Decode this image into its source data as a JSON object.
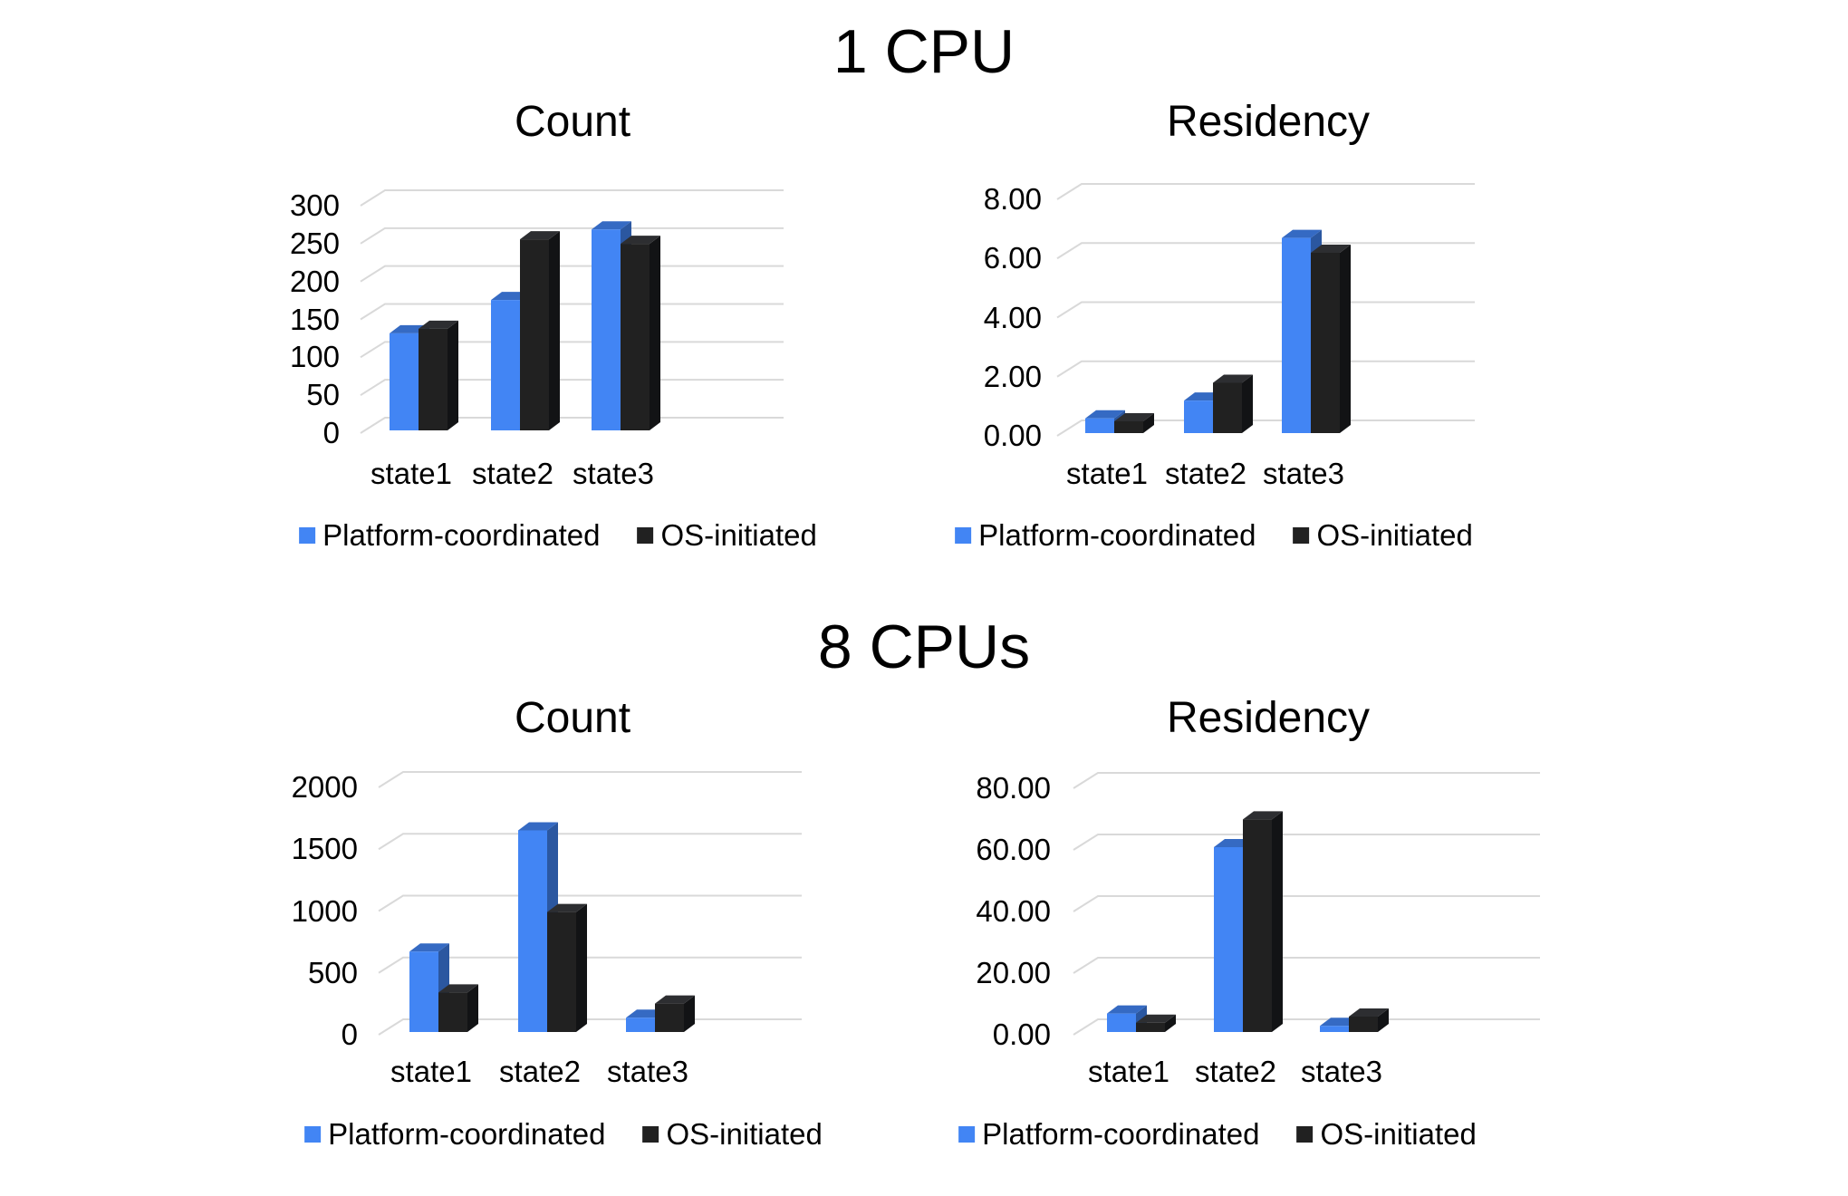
{
  "titles": {
    "group1": "1 CPU",
    "group2": "8 CPUs"
  },
  "legend_labels": [
    "Platform-coordinated",
    "OS-initiated"
  ],
  "colors": {
    "platform": "#4285f4",
    "platform_top": "#356ac3",
    "platform_side": "#2b57a0",
    "os": "#212121",
    "os_top": "#2d2e31",
    "os_side": "#121315",
    "gridline": "#d9d9d9",
    "text": "#000000",
    "background": "#ffffff"
  },
  "chart_data": [
    {
      "id": "cpu1-count",
      "group": "1 CPU",
      "type": "bar",
      "bar_style": "3d-column",
      "title": "Count",
      "xlabel": "",
      "ylabel": "",
      "grid": true,
      "legend_position": "bottom",
      "categories": [
        "state1",
        "state2",
        "state3"
      ],
      "series": [
        {
          "name": "Platform-coordinated",
          "values": [
            128,
            172,
            265
          ]
        },
        {
          "name": "OS-initiated",
          "values": [
            134,
            252,
            246
          ]
        }
      ],
      "ylim": [
        0,
        300
      ],
      "ytick_labels": [
        "300",
        "250",
        "200",
        "150",
        "100",
        "50",
        "0"
      ]
    },
    {
      "id": "cpu1-residency",
      "group": "1 CPU",
      "type": "bar",
      "bar_style": "3d-column",
      "title": "Residency",
      "xlabel": "",
      "ylabel": "",
      "grid": true,
      "legend_position": "bottom",
      "categories": [
        "state1",
        "state2",
        "state3"
      ],
      "series": [
        {
          "name": "Platform-coordinated",
          "values": [
            0.5,
            1.1,
            6.6
          ]
        },
        {
          "name": "OS-initiated",
          "values": [
            0.4,
            1.7,
            6.1
          ]
        }
      ],
      "ylim": [
        0,
        8
      ],
      "ytick_labels": [
        "8.00",
        "6.00",
        "4.00",
        "2.00",
        "0.00"
      ]
    },
    {
      "id": "cpu8-count",
      "group": "8 CPUs",
      "type": "bar",
      "bar_style": "3d-column",
      "title": "Count",
      "xlabel": "",
      "ylabel": "",
      "grid": true,
      "legend_position": "bottom",
      "categories": [
        "state1",
        "state2",
        "state3"
      ],
      "series": [
        {
          "name": "Platform-coordinated",
          "values": [
            650,
            1630,
            115
          ]
        },
        {
          "name": "OS-initiated",
          "values": [
            320,
            970,
            230
          ]
        }
      ],
      "ylim": [
        0,
        2000
      ],
      "ytick_labels": [
        "2000",
        "1500",
        "1000",
        "500",
        "0"
      ]
    },
    {
      "id": "cpu8-residency",
      "group": "8 CPUs",
      "type": "bar",
      "bar_style": "3d-column",
      "title": "Residency",
      "xlabel": "",
      "ylabel": "",
      "grid": true,
      "legend_position": "bottom",
      "categories": [
        "state1",
        "state2",
        "state3"
      ],
      "series": [
        {
          "name": "Platform-coordinated",
          "values": [
            6,
            60,
            2
          ]
        },
        {
          "name": "OS-initiated",
          "values": [
            3,
            69,
            5
          ]
        }
      ],
      "ylim": [
        0,
        80
      ],
      "ytick_labels": [
        "80.00",
        "60.00",
        "40.00",
        "20.00",
        "0.00"
      ]
    }
  ]
}
